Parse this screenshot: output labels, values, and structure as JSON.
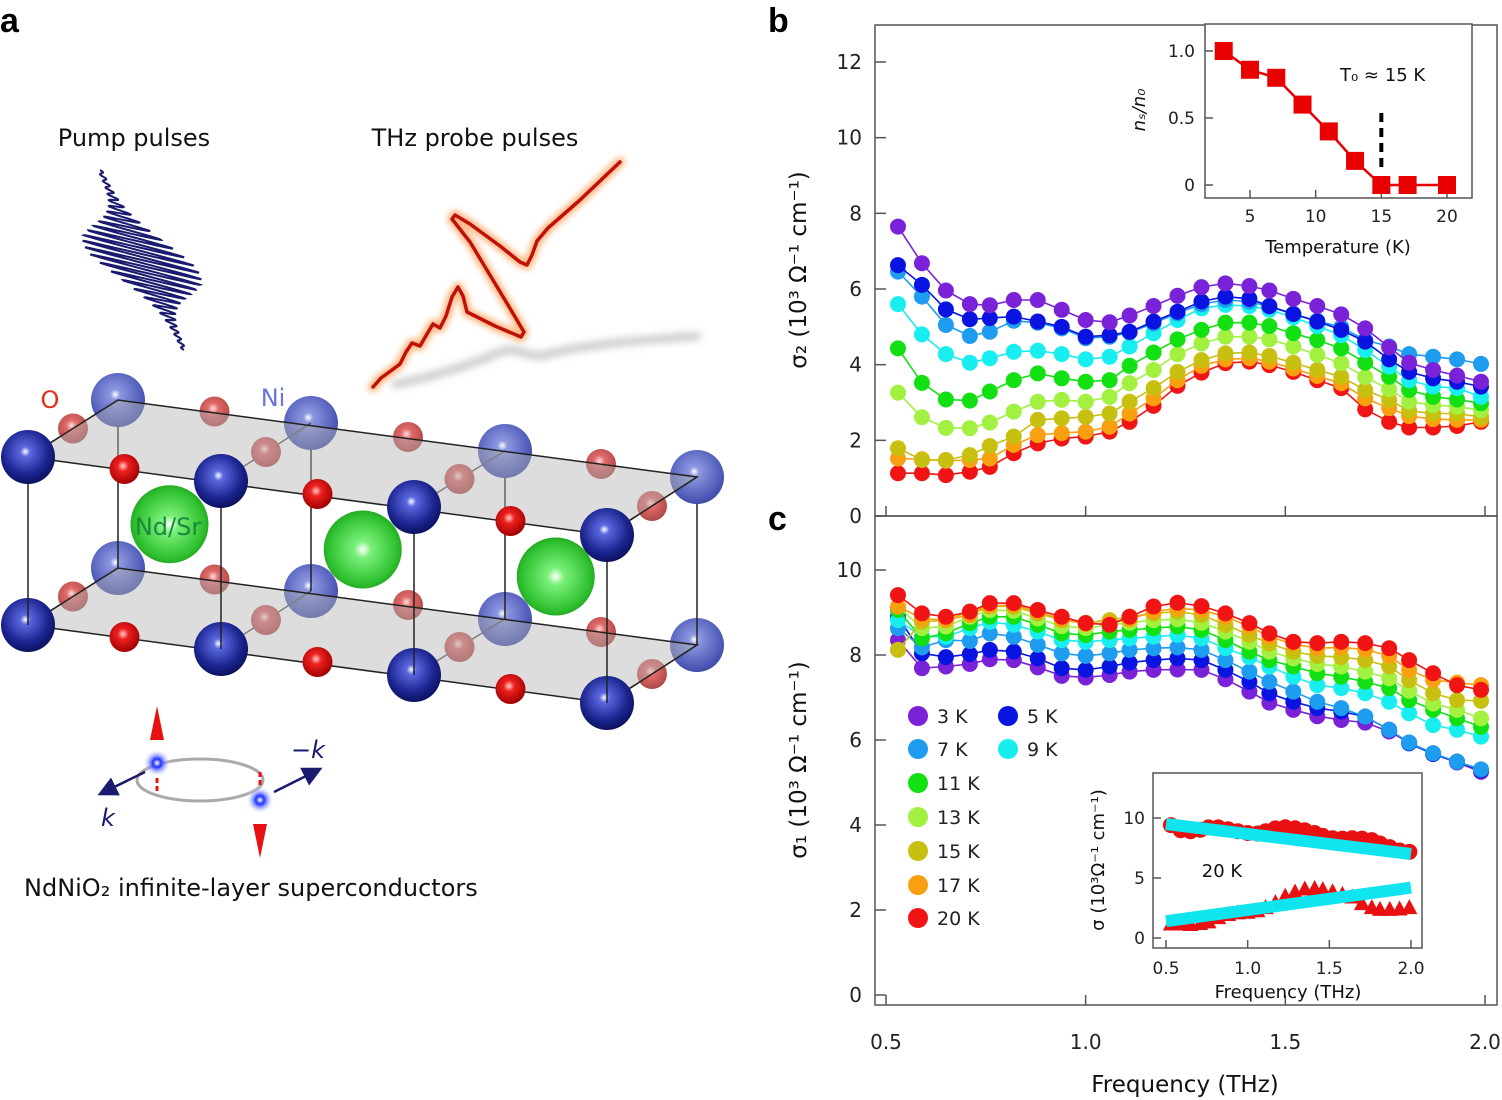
{
  "panel_labels": {
    "a": "a",
    "b": "b",
    "c": "c"
  },
  "panel_a": {
    "pump_label": "Pump pulses",
    "thz_label": "THz probe pulses",
    "atom_O": "O",
    "atom_Ni": "Ni",
    "atom_NdSr": "Nd/Sr",
    "k_label": "k",
    "minus_k_label": "−k",
    "caption": "NdNiO₂ infinite-layer superconductors",
    "colors": {
      "pump": "#1a1a6e",
      "thz": "#c0100a",
      "ni": "#1c2590",
      "o": "#e01414",
      "nd_sr": "#2ec02e",
      "spin_arrow": "#e81010"
    }
  },
  "chart_data": [
    {
      "type": "line",
      "panel": "b",
      "xlabel": "",
      "ylabel": "σ₂ (10³ Ω⁻¹ cm⁻¹)",
      "xlim": [
        0.47,
        2.03
      ],
      "ylim": [
        0,
        12.98
      ],
      "xticks": [
        0.5,
        1.0,
        1.5,
        2.0
      ],
      "yticks": [
        0,
        2,
        4,
        6,
        8,
        10,
        12
      ],
      "ytick_labels": [
        "0",
        "2",
        "4",
        "6",
        "8",
        "10",
        "12"
      ],
      "grid": false,
      "x": [
        0.53,
        0.59,
        0.65,
        0.71,
        0.76,
        0.82,
        0.88,
        0.94,
        1.0,
        1.06,
        1.11,
        1.17,
        1.23,
        1.29,
        1.35,
        1.41,
        1.46,
        1.52,
        1.58,
        1.64,
        1.7,
        1.76,
        1.81,
        1.87,
        1.93,
        1.99
      ],
      "series": [
        {
          "name": "3 K",
          "color": "#7a22d8",
          "values": [
            7.65,
            6.68,
            5.96,
            5.6,
            5.57,
            5.71,
            5.71,
            5.45,
            5.18,
            5.12,
            5.3,
            5.55,
            5.82,
            6.05,
            6.15,
            6.08,
            5.96,
            5.74,
            5.55,
            5.33,
            4.96,
            4.46,
            4.05,
            3.86,
            3.71,
            3.55
          ]
        },
        {
          "name": "5 K",
          "color": "#0a14e0",
          "values": [
            6.63,
            6.11,
            5.46,
            5.2,
            5.23,
            5.27,
            5.14,
            5.0,
            4.74,
            4.78,
            4.87,
            5.14,
            5.4,
            5.67,
            5.8,
            5.74,
            5.55,
            5.34,
            5.14,
            4.92,
            4.61,
            4.14,
            3.81,
            3.64,
            3.55,
            3.42
          ]
        },
        {
          "name": "7 K",
          "color": "#1e9cf0",
          "values": [
            6.46,
            5.8,
            5.05,
            4.76,
            4.87,
            5.16,
            5.11,
            4.96,
            4.7,
            4.74,
            4.85,
            5.09,
            5.36,
            5.6,
            5.71,
            5.67,
            5.53,
            5.34,
            5.16,
            4.99,
            4.65,
            4.48,
            4.28,
            4.21,
            4.14,
            4.02
          ]
        },
        {
          "name": "9 K",
          "color": "#18eef0",
          "values": [
            5.6,
            4.8,
            4.28,
            4.05,
            4.17,
            4.34,
            4.37,
            4.28,
            4.14,
            4.21,
            4.48,
            4.83,
            5.18,
            5.49,
            5.58,
            5.55,
            5.45,
            5.25,
            5.02,
            4.78,
            4.39,
            3.95,
            3.59,
            3.42,
            3.38,
            3.15
          ]
        },
        {
          "name": "11 K",
          "color": "#12e012",
          "values": [
            4.43,
            3.52,
            3.08,
            3.05,
            3.29,
            3.59,
            3.77,
            3.64,
            3.55,
            3.59,
            3.97,
            4.32,
            4.67,
            4.92,
            5.11,
            5.11,
            5.02,
            4.83,
            4.65,
            4.43,
            4.05,
            3.68,
            3.33,
            3.15,
            3.08,
            2.98
          ]
        },
        {
          "name": "13 K",
          "color": "#a2f040",
          "values": [
            3.26,
            2.61,
            2.33,
            2.32,
            2.47,
            2.76,
            3.02,
            3.07,
            3.02,
            3.15,
            3.51,
            3.86,
            4.28,
            4.56,
            4.74,
            4.74,
            4.67,
            4.48,
            4.26,
            4.04,
            3.67,
            3.35,
            3.02,
            2.93,
            2.89,
            2.8
          ]
        },
        {
          "name": "15 K",
          "color": "#c8c010",
          "values": [
            1.79,
            1.48,
            1.48,
            1.61,
            1.85,
            2.1,
            2.54,
            2.58,
            2.62,
            2.71,
            3.02,
            3.38,
            3.81,
            4.12,
            4.3,
            4.32,
            4.23,
            4.05,
            3.86,
            3.68,
            3.33,
            3.07,
            2.78,
            2.71,
            2.71,
            2.62
          ]
        },
        {
          "name": "17 K",
          "color": "#f8a010",
          "values": [
            1.52,
            1.5,
            1.46,
            1.48,
            1.52,
            1.88,
            2.14,
            2.19,
            2.23,
            2.36,
            2.71,
            3.11,
            3.59,
            3.97,
            4.14,
            4.17,
            4.08,
            3.9,
            3.7,
            3.51,
            3.11,
            2.85,
            2.64,
            2.56,
            2.54,
            2.54
          ]
        },
        {
          "name": "20 K",
          "color": "#f01414",
          "values": [
            1.13,
            1.13,
            1.08,
            1.17,
            1.3,
            1.66,
            1.92,
            2.05,
            2.1,
            2.23,
            2.49,
            2.91,
            3.44,
            3.79,
            4.04,
            4.08,
            3.99,
            3.81,
            3.59,
            3.38,
            2.82,
            2.49,
            2.34,
            2.34,
            2.38,
            2.49
          ]
        }
      ]
    },
    {
      "type": "line",
      "panel": "b-inset",
      "xlabel": "Temperature (K)",
      "ylabel": "nₛ/n₀",
      "xlim": [
        1.57,
        21.9
      ],
      "ylim": [
        -0.1,
        1.2
      ],
      "xticks": [
        5,
        10,
        15,
        20
      ],
      "xtick_labels": [
        "5",
        "10",
        "15",
        "20"
      ],
      "yticks": [
        0,
        0.5,
        1.0
      ],
      "ytick_labels": [
        "0",
        "0.5",
        "1.0"
      ],
      "x": [
        3,
        5,
        7,
        9,
        11,
        13,
        15,
        17,
        20
      ],
      "y": [
        1.0,
        0.86,
        0.8,
        0.6,
        0.4,
        0.18,
        0.0,
        0.0,
        0.0
      ],
      "marker": "square",
      "color": "#e80000",
      "annotation": "T₀ ≈ 15 K",
      "vline_x": 15
    },
    {
      "type": "line",
      "panel": "c",
      "xlabel": "Frequency (THz)",
      "ylabel": "σ₁ (10³ Ω⁻¹ cm⁻¹)",
      "xlim": [
        0.47,
        2.03
      ],
      "ylim": [
        -0.24,
        11.27
      ],
      "xticks": [
        0.5,
        1.0,
        1.5,
        2.0
      ],
      "xtick_labels": [
        "0.5",
        "1.0",
        "1.5",
        "2.0"
      ],
      "yticks": [
        0,
        2,
        4,
        6,
        8,
        10
      ],
      "ytick_labels": [
        "0",
        "2",
        "4",
        "6",
        "8",
        "10"
      ],
      "grid": false,
      "legend": "bottom-left",
      "x": [
        0.53,
        0.59,
        0.65,
        0.71,
        0.76,
        0.82,
        0.88,
        0.94,
        1.0,
        1.06,
        1.11,
        1.17,
        1.23,
        1.29,
        1.35,
        1.41,
        1.46,
        1.52,
        1.58,
        1.64,
        1.7,
        1.76,
        1.81,
        1.87,
        1.93,
        1.99
      ],
      "series": [
        {
          "name": "3 K",
          "color": "#7a22d8",
          "values": [
            8.35,
            7.69,
            7.73,
            7.79,
            7.9,
            7.88,
            7.71,
            7.51,
            7.47,
            7.53,
            7.61,
            7.65,
            7.66,
            7.65,
            7.43,
            7.14,
            6.88,
            6.71,
            6.56,
            6.47,
            6.41,
            6.2,
            5.94,
            5.67,
            5.47,
            5.25
          ]
        },
        {
          "name": "5 K",
          "color": "#0a14e0",
          "values": [
            8.9,
            8.04,
            7.95,
            8.02,
            8.12,
            8.08,
            7.92,
            7.69,
            7.65,
            7.73,
            7.82,
            7.88,
            7.92,
            7.88,
            7.65,
            7.37,
            7.1,
            6.9,
            6.75,
            6.67,
            6.55,
            6.24,
            5.92,
            5.67,
            5.49,
            5.29
          ]
        },
        {
          "name": "7 K",
          "color": "#1e9cf0",
          "values": [
            8.63,
            8.18,
            8.35,
            8.33,
            8.51,
            8.43,
            8.24,
            8.04,
            7.98,
            8.04,
            8.12,
            8.16,
            8.18,
            8.12,
            7.88,
            7.61,
            7.37,
            7.14,
            6.9,
            6.75,
            6.55,
            6.24,
            5.94,
            5.69,
            5.49,
            5.31
          ]
        },
        {
          "name": "9 K",
          "color": "#18eef0",
          "values": [
            8.82,
            8.43,
            8.43,
            8.63,
            8.78,
            8.71,
            8.55,
            8.35,
            8.31,
            8.35,
            8.39,
            8.43,
            8.47,
            8.39,
            8.16,
            7.95,
            7.73,
            7.49,
            7.29,
            7.22,
            7.1,
            6.9,
            6.63,
            6.35,
            6.24,
            6.08
          ]
        },
        {
          "name": "11 K",
          "color": "#12e012",
          "values": [
            9.06,
            8.39,
            8.51,
            8.75,
            8.9,
            8.9,
            8.71,
            8.51,
            8.47,
            8.55,
            8.59,
            8.63,
            8.67,
            8.59,
            8.35,
            8.08,
            7.88,
            7.73,
            7.57,
            7.49,
            7.37,
            7.22,
            6.94,
            6.71,
            6.51,
            6.31
          ]
        },
        {
          "name": "13 K",
          "color": "#a2f040",
          "values": [
            9.14,
            8.63,
            8.67,
            8.9,
            9.06,
            9.04,
            8.86,
            8.68,
            8.63,
            8.71,
            8.76,
            8.82,
            8.84,
            8.76,
            8.55,
            8.31,
            8.08,
            7.92,
            7.79,
            7.73,
            7.61,
            7.45,
            7.16,
            6.86,
            6.71,
            6.51
          ]
        },
        {
          "name": "15 K",
          "color": "#c8c010",
          "values": [
            8.12,
            8.78,
            8.82,
            9.02,
            9.15,
            9.14,
            8.98,
            8.82,
            8.76,
            8.82,
            8.9,
            8.98,
            9.02,
            8.94,
            8.71,
            8.47,
            8.27,
            8.08,
            7.98,
            7.95,
            7.88,
            7.73,
            7.41,
            7.1,
            6.94,
            6.92
          ]
        },
        {
          "name": "17 K",
          "color": "#f8a010",
          "values": [
            9.14,
            8.86,
            8.82,
            8.94,
            9.15,
            9.18,
            9.02,
            8.84,
            8.73,
            8.75,
            8.84,
            9.02,
            9.1,
            9.06,
            8.9,
            8.67,
            8.43,
            8.26,
            8.16,
            8.18,
            8.13,
            7.98,
            7.65,
            7.41,
            7.35,
            7.29
          ]
        },
        {
          "name": "20 K",
          "color": "#f01414",
          "values": [
            9.41,
            8.98,
            8.9,
            9.02,
            9.22,
            9.22,
            9.06,
            8.9,
            8.75,
            8.71,
            8.9,
            9.14,
            9.23,
            9.15,
            8.98,
            8.75,
            8.51,
            8.31,
            8.28,
            8.31,
            8.28,
            8.16,
            7.88,
            7.57,
            7.29,
            7.18
          ]
        }
      ]
    },
    {
      "type": "scatter",
      "panel": "c-inset",
      "xlabel": "Frequency (THz)",
      "ylabel": "σ (10³Ω⁻¹ cm⁻¹)",
      "xlim": [
        0.42,
        2.07
      ],
      "ylim": [
        -0.83,
        13.75
      ],
      "xticks": [
        0.5,
        1.0,
        1.5,
        2.0
      ],
      "xtick_labels": [
        "0.5",
        "1.0",
        "1.5",
        "2.0"
      ],
      "yticks": [
        0,
        5,
        10
      ],
      "ytick_labels": [
        "0",
        "5",
        "10"
      ],
      "annotation": "20 K",
      "x": [
        0.53,
        0.59,
        0.65,
        0.71,
        0.76,
        0.82,
        0.88,
        0.94,
        1.0,
        1.06,
        1.11,
        1.17,
        1.23,
        1.29,
        1.35,
        1.41,
        1.46,
        1.52,
        1.58,
        1.64,
        1.7,
        1.76,
        1.81,
        1.87,
        1.93,
        1.99
      ],
      "series": [
        {
          "marker": "circle",
          "color": "#e81010",
          "values": [
            9.41,
            8.98,
            8.9,
            9.02,
            9.22,
            9.22,
            9.06,
            8.9,
            8.75,
            8.71,
            8.9,
            9.14,
            9.23,
            9.15,
            8.98,
            8.75,
            8.51,
            8.31,
            8.28,
            8.31,
            8.28,
            8.16,
            7.88,
            7.57,
            7.29,
            7.18
          ]
        },
        {
          "marker": "triangle",
          "color": "#e81010",
          "values": [
            1.13,
            1.13,
            1.08,
            1.17,
            1.3,
            1.66,
            1.92,
            2.05,
            2.1,
            2.23,
            2.49,
            2.91,
            3.44,
            3.79,
            4.04,
            4.08,
            3.99,
            3.81,
            3.59,
            3.38,
            2.82,
            2.49,
            2.34,
            2.34,
            2.38,
            2.49
          ]
        }
      ],
      "fits": [
        {
          "color": "#10e4ee",
          "x": [
            0.5,
            2.0
          ],
          "y": [
            9.5,
            7.0
          ]
        },
        {
          "color": "#10e4ee",
          "x": [
            0.5,
            2.0
          ],
          "y": [
            1.4,
            4.2
          ]
        }
      ]
    }
  ]
}
